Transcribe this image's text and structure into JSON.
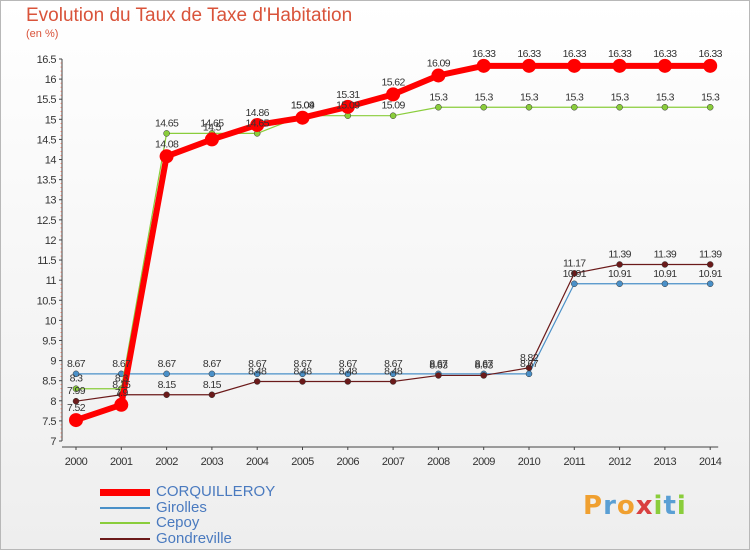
{
  "chart_data": {
    "type": "line",
    "title": "Evolution du Taux de Taxe d'Habitation",
    "ylabel": "(en %)",
    "ylim": [
      7,
      16.5
    ],
    "ytick_step": 0.5,
    "grid": false,
    "categories": [
      "2000",
      "2001",
      "2002",
      "2003",
      "2004",
      "2005",
      "2006",
      "2007",
      "2008",
      "2009",
      "2010",
      "2011",
      "2012",
      "2013",
      "2014"
    ],
    "series": [
      {
        "name": "CORQUILLEROY",
        "color": "#ff0000",
        "values": [
          7.52,
          7.9,
          14.08,
          14.5,
          14.86,
          15.04,
          15.31,
          15.62,
          16.09,
          16.33,
          16.33,
          16.33,
          16.33,
          16.33,
          16.33
        ]
      },
      {
        "name": "Girolles",
        "color": "#4a90c8",
        "values": [
          8.67,
          8.67,
          8.67,
          8.67,
          8.67,
          8.67,
          8.67,
          8.67,
          8.67,
          8.67,
          8.67,
          10.91,
          10.91,
          10.91,
          10.91
        ]
      },
      {
        "name": "Cepoy",
        "color": "#8acd3b",
        "values": [
          8.3,
          8.3,
          14.65,
          14.65,
          14.65,
          15.09,
          15.09,
          15.09,
          15.3,
          15.3,
          15.3,
          15.3,
          15.3,
          15.3,
          15.3
        ]
      },
      {
        "name": "Gondreville",
        "color": "#6b1a1a",
        "values": [
          7.99,
          8.15,
          8.15,
          8.15,
          8.48,
          8.48,
          8.48,
          8.48,
          8.63,
          8.63,
          8.82,
          11.17,
          11.39,
          11.39,
          11.39
        ]
      }
    ],
    "legend_position": "bottom-left"
  },
  "logo": {
    "text": "Proxiti",
    "colors": [
      "#f0a030",
      "#5a9fd4",
      "#f0a030",
      "#d94040",
      "#8acd3b",
      "#5a9fd4",
      "#8acd3b"
    ]
  }
}
